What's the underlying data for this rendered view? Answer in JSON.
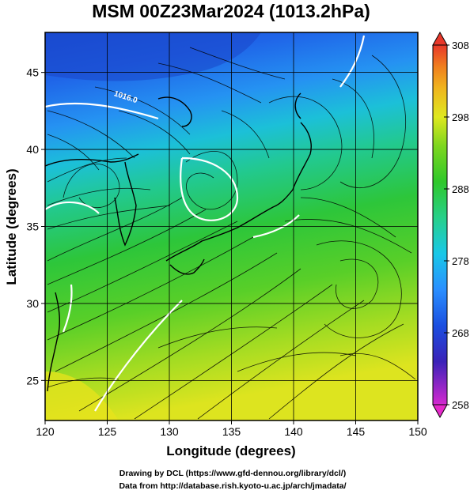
{
  "title": "MSM 00Z23Mar2024 (1013.2hPa)",
  "map": {
    "xlabel": "Longitude (degrees)",
    "ylabel": "Latitude  (degrees)",
    "xlim": [
      120,
      150
    ],
    "ylim": [
      22.4,
      47.6
    ],
    "x_ticks": [
      {
        "value": 120,
        "label": "120"
      },
      {
        "value": 125,
        "label": "125"
      },
      {
        "value": 130,
        "label": "130"
      },
      {
        "value": 135,
        "label": "135"
      },
      {
        "value": 140,
        "label": "140"
      },
      {
        "value": 145,
        "label": "145"
      },
      {
        "value": 150,
        "label": "150"
      }
    ],
    "y_ticks": [
      {
        "value": 25,
        "label": "25"
      },
      {
        "value": 30,
        "label": "30"
      },
      {
        "value": 35,
        "label": "35"
      },
      {
        "value": 40,
        "label": "40"
      },
      {
        "value": 45,
        "label": "45"
      }
    ],
    "grid": true,
    "contour_label": "1016.0",
    "contour_label_lon": 125.5,
    "contour_label_lat": 43.5
  },
  "colorbar": {
    "min": 258,
    "max": 308,
    "ticks": [
      {
        "value": 258,
        "label": "258"
      },
      {
        "value": 268,
        "label": "268"
      },
      {
        "value": 278,
        "label": "278"
      },
      {
        "value": 288,
        "label": "288"
      },
      {
        "value": 298,
        "label": "298"
      },
      {
        "value": 308,
        "label": "308"
      }
    ],
    "colors": [
      "#d42ad0",
      "#3a22b8",
      "#1b4fe0",
      "#2a8fff",
      "#19c8e8",
      "#27d08a",
      "#2fc82a",
      "#7ed61f",
      "#dfe81f",
      "#f0b51e",
      "#f07f1e",
      "#e8382a"
    ]
  },
  "credits": {
    "line1": "Drawing by DCL (https://www.gfd-dennou.org/library/dcl/)",
    "line2": "Data from http://database.rish.kyoto-u.ac.jp/arch/jmadata/"
  }
}
